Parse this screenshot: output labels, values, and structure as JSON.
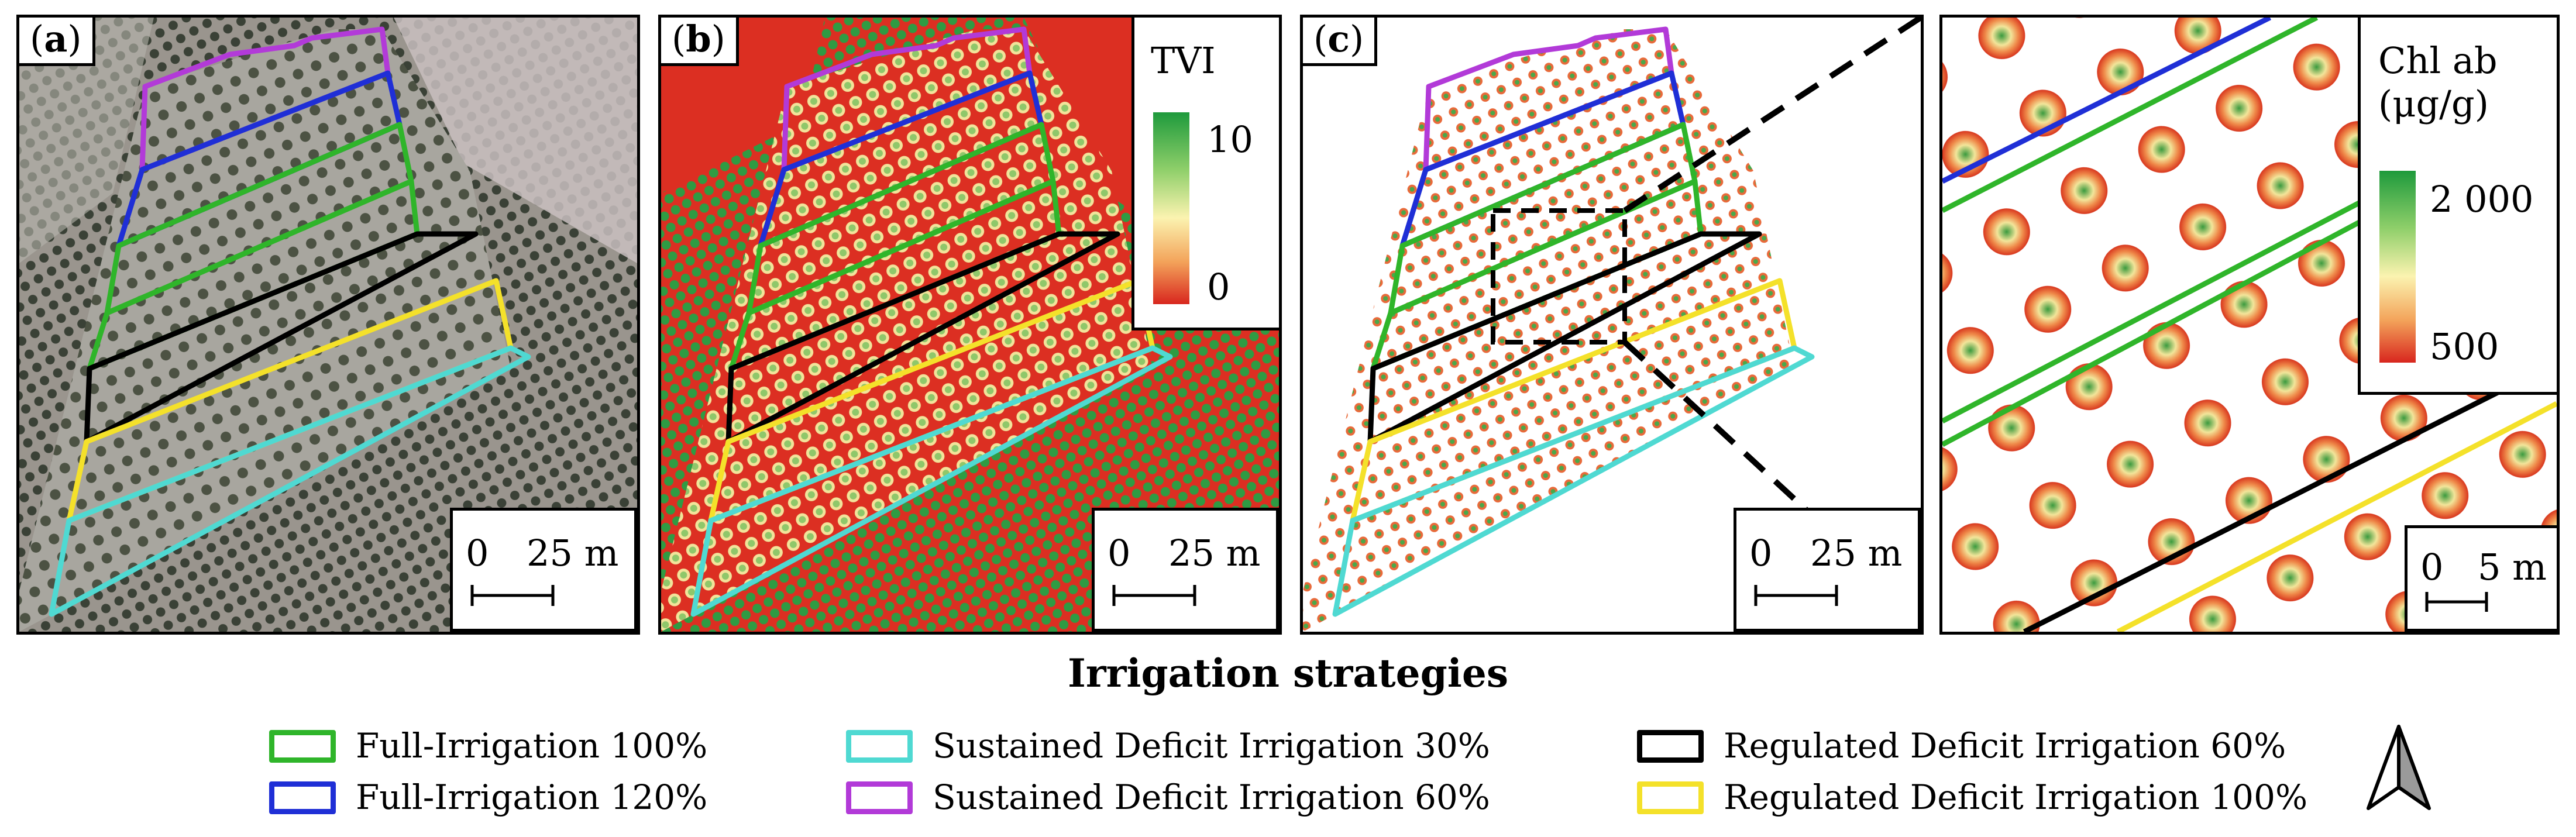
{
  "panels": {
    "a": {
      "label": "a",
      "scale_zero": "0",
      "scale_value": "25 m"
    },
    "b": {
      "label": "b",
      "scale_zero": "0",
      "scale_value": "25 m",
      "legend_title": "TVI",
      "legend_max": "10",
      "legend_min": "0"
    },
    "c": {
      "label": "c",
      "scale_zero": "0",
      "scale_value": "25 m"
    },
    "inset": {
      "scale_zero": "0",
      "scale_value": "5 m",
      "legend_title_line1": "Chl ab",
      "legend_title_line2": "(μg/g)",
      "legend_max": "2 000",
      "legend_min": "500"
    }
  },
  "legend": {
    "title": "Irrigation strategies",
    "items": [
      {
        "label": "Full-Irrigation 100%",
        "color": "#2fb52a"
      },
      {
        "label": "Full-Irrigation 120%",
        "color": "#1f2fd6"
      },
      {
        "label": "Sustained Deficit Irrigation 30%",
        "color": "#4fd9d2"
      },
      {
        "label": "Sustained Deficit Irrigation 60%",
        "color": "#b23ad8"
      },
      {
        "label": "Regulated Deficit Irrigation 60%",
        "color": "#000000"
      },
      {
        "label": "Regulated Deficit Irrigation 100%",
        "color": "#f4e12a"
      }
    ]
  },
  "colors": {
    "full_100": "#2fb52a",
    "full_120": "#1f2fd6",
    "sdi_30": "#4fd9d2",
    "sdi_60": "#b23ad8",
    "rdi_60": "#000000",
    "rdi_100": "#f4e12a",
    "ramp_high": "#1e9a3c",
    "ramp_mid": "#fbf3b0",
    "ramp_low": "#d8261e"
  },
  "icons": {
    "north_arrow": "north-arrow-icon"
  }
}
